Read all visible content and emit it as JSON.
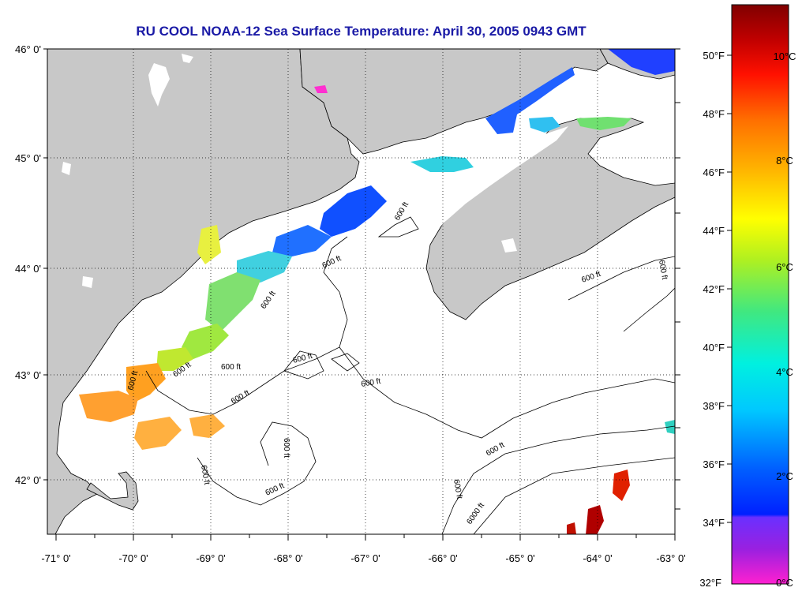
{
  "title": "RU COOL  NOAA-12  Sea Surface Temperature:  April 30, 2005 0943 GMT",
  "lat_labels": [
    "46° 0'",
    "45° 0'",
    "44° 0'",
    "43° 0'",
    "42° 0'"
  ],
  "lon_labels": [
    "-71° 0'",
    "-70° 0'",
    "-69° 0'",
    "-68° 0'",
    "-67° 0'",
    "-66° 0'",
    "-65° 0'",
    "-64° 0'",
    "-63° 0'"
  ],
  "contour_label": "600 ft",
  "contour_label_deep": "6000 ft",
  "colorbar": {
    "f_labels": [
      "50°F",
      "48°F",
      "46°F",
      "44°F",
      "42°F",
      "40°F",
      "38°F",
      "36°F",
      "34°F",
      "32°F"
    ],
    "c_labels": [
      "10°C",
      "8°C",
      "6°C",
      "4°C",
      "2°C",
      "0°C"
    ]
  },
  "colors": {
    "land": "#c8c8c8",
    "water": "#ffffff",
    "title": "#1a1aa6"
  }
}
